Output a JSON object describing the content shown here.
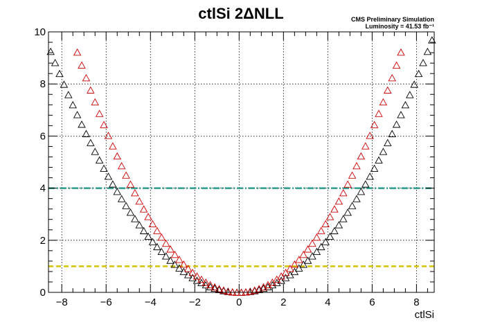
{
  "chart_data": {
    "type": "scatter",
    "title": "ctlSi 2ΔNLL",
    "xlabel": "ctlSi",
    "ylabel": "",
    "xlim": [
      -8.6,
      8.8
    ],
    "ylim": [
      0,
      10
    ],
    "x_ticks": [
      -8,
      -6,
      -4,
      -2,
      0,
      2,
      4,
      6,
      8
    ],
    "y_ticks": [
      0,
      2,
      4,
      6,
      8,
      10
    ],
    "x_tick_labels": [
      "−8",
      "−6",
      "−4",
      "−2",
      "0",
      "2",
      "4",
      "6",
      "8"
    ],
    "y_tick_labels": [
      "0",
      "2",
      "4",
      "6",
      "8",
      "10"
    ],
    "grid": true,
    "annotations": [
      "CMS Preliminary Simulation",
      "Luminosity = 41.53 fb⁻¹"
    ],
    "series": [
      {
        "color": "#000000",
        "marker": "open-triangle",
        "x_start": -8.5,
        "x_end": 8.6,
        "x_step": 0.2,
        "model": "quadratic",
        "coefficient": 0.128
      },
      {
        "color": "#cc0000",
        "marker": "open-triangle",
        "x_start": -7.3,
        "x_end": 7.4,
        "x_step": 0.2,
        "model": "quadratic",
        "coefficient": 0.173
      }
    ],
    "reference_lines": [
      {
        "y": 4,
        "color": "#2a9d8f",
        "style": "dash-dot"
      },
      {
        "y": 1,
        "color": "#d4c200",
        "style": "dashed"
      }
    ]
  }
}
